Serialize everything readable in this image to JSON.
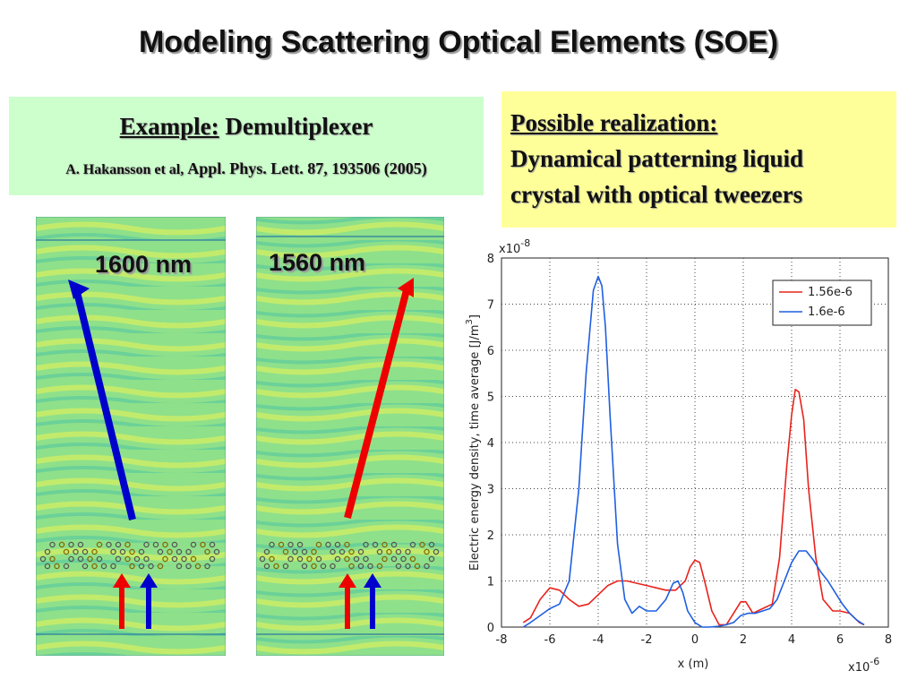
{
  "slide": {
    "title": "Modeling Scattering Optical Elements (SOE)"
  },
  "example_box": {
    "label": "Example:",
    "text": "Demultiplexer",
    "citation_authors": "A. Hakansson et al,",
    "citation_journal": "Appl. Phys. Lett. 87, 193506 (2005)"
  },
  "realization_box": {
    "heading": "Possible realization:",
    "line1": "Dynamical patterning liquid",
    "line2": "crystal with optical tweezers"
  },
  "simulations": [
    {
      "label": "1600 nm",
      "output_arrow_color": "#0000cc"
    },
    {
      "label": "1560 nm",
      "output_arrow_color": "#ee0000"
    }
  ],
  "colors": {
    "field_background": "#8fe08a",
    "wave_light": "#d8f060",
    "wave_dark": "#3fc0a8",
    "blue_arrow": "#0000cc",
    "red_arrow": "#ee0000",
    "series_red": "#e8231c",
    "series_blue": "#1f5fe0"
  },
  "chart_data": {
    "type": "line",
    "xlabel": "x (m)",
    "ylabel": "Electric energy density, time average [J/m^3]",
    "ylabel_main": "Electric energy density, time average [J/m",
    "ylabel_sup": "3",
    "ylabel_end": "]",
    "x_multiplier": "x10",
    "x_multiplier_exp": "-6",
    "y_multiplier": "x10",
    "y_multiplier_exp": "-8",
    "xlim": [
      -8,
      8
    ],
    "ylim": [
      0,
      8
    ],
    "xticks": [
      "-8",
      "-6",
      "-4",
      "-2",
      "0",
      "2",
      "4",
      "6",
      "8"
    ],
    "yticks": [
      "0",
      "1",
      "2",
      "3",
      "4",
      "5",
      "6",
      "7",
      "8"
    ],
    "grid": true,
    "legend_position": "top-right",
    "series": [
      {
        "name": "1.56e-6",
        "color": "#e8231c",
        "x": [
          -7.1,
          -6.8,
          -6.4,
          -6.0,
          -5.6,
          -5.2,
          -4.8,
          -4.4,
          -4.0,
          -3.6,
          -3.2,
          -2.8,
          -2.4,
          -2.0,
          -1.6,
          -1.2,
          -0.8,
          -0.4,
          -0.2,
          0.0,
          0.2,
          0.4,
          0.7,
          1.0,
          1.3,
          1.6,
          1.9,
          2.1,
          2.4,
          2.8,
          3.2,
          3.5,
          3.8,
          4.0,
          4.15,
          4.3,
          4.5,
          4.7,
          5.0,
          5.3,
          5.7,
          6.0,
          6.4,
          6.8,
          7.0
        ],
        "y": [
          0.1,
          0.2,
          0.6,
          0.85,
          0.8,
          0.6,
          0.45,
          0.5,
          0.7,
          0.9,
          1.0,
          1.0,
          0.95,
          0.9,
          0.85,
          0.8,
          0.8,
          1.0,
          1.3,
          1.45,
          1.4,
          1.0,
          0.35,
          0.05,
          0.05,
          0.3,
          0.55,
          0.55,
          0.3,
          0.4,
          0.5,
          1.5,
          3.5,
          4.6,
          5.15,
          5.1,
          4.5,
          3.0,
          1.5,
          0.6,
          0.35,
          0.35,
          0.3,
          0.1,
          0.05
        ]
      },
      {
        "name": "1.6e-6",
        "color": "#1f5fe0",
        "x": [
          -7.1,
          -6.8,
          -6.4,
          -6.0,
          -5.6,
          -5.2,
          -4.8,
          -4.5,
          -4.2,
          -4.0,
          -3.85,
          -3.7,
          -3.5,
          -3.2,
          -2.9,
          -2.6,
          -2.3,
          -2.0,
          -1.6,
          -1.2,
          -0.9,
          -0.7,
          -0.5,
          -0.3,
          0.0,
          0.3,
          0.6,
          1.0,
          1.3,
          1.6,
          1.9,
          2.2,
          2.5,
          2.8,
          3.1,
          3.4,
          3.7,
          4.0,
          4.3,
          4.6,
          4.9,
          5.2,
          5.5,
          5.8,
          6.1,
          6.4,
          6.7,
          7.0
        ],
        "y": [
          0.0,
          0.1,
          0.25,
          0.4,
          0.5,
          1.0,
          3.0,
          5.5,
          7.3,
          7.6,
          7.4,
          6.5,
          4.5,
          1.8,
          0.6,
          0.3,
          0.45,
          0.35,
          0.35,
          0.6,
          0.95,
          1.0,
          0.75,
          0.35,
          0.1,
          0.0,
          0.0,
          0.02,
          0.05,
          0.1,
          0.25,
          0.3,
          0.3,
          0.35,
          0.4,
          0.6,
          1.0,
          1.4,
          1.65,
          1.65,
          1.45,
          1.2,
          1.0,
          0.75,
          0.5,
          0.3,
          0.15,
          0.05
        ]
      }
    ]
  }
}
